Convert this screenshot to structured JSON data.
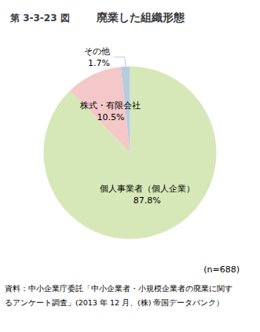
{
  "chart_data": {
    "type": "pie",
    "title": "廃業した組織形態",
    "subtitle": "第 3-3-23 図",
    "categories": [
      "個人事業者（個人企業）",
      "株式・有限会社",
      "その他"
    ],
    "values": [
      87.8,
      10.5,
      1.7
    ],
    "value_labels": [
      "87.8%",
      "10.5%",
      "1.7%"
    ],
    "colors": [
      "#d6e8b8",
      "#f4c8c8",
      "#b8cce0"
    ],
    "data_labels": true,
    "legend": false,
    "annotations": [
      "(n=688)",
      "資料：中小企業庁委託「中小企業者・小規模企業者の廃業に関す",
      "るアンケート調査」(2013 年 12 月、(株) 帝国データバンク）"
    ]
  }
}
